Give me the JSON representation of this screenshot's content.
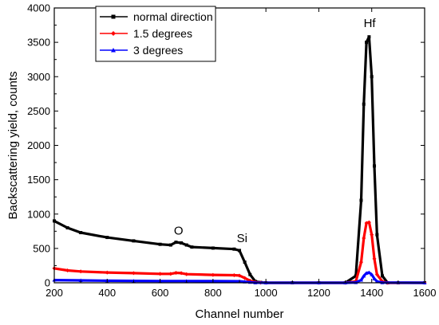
{
  "chart_data": {
    "type": "line",
    "xlabel": "Channel number",
    "ylabel": "Backscattering yield, counts",
    "xlim": [
      200,
      1600
    ],
    "ylim": [
      0,
      4000
    ],
    "xticks": [
      "200",
      "400",
      "600",
      "800",
      "1000",
      "1200",
      "1400",
      "1600"
    ],
    "yticks": [
      "0",
      "500",
      "1000",
      "1500",
      "2000",
      "2500",
      "3000",
      "3500",
      "4000"
    ],
    "legend_position": "top-left",
    "annotations": [
      {
        "text": "O",
        "x": 670,
        "y": 700
      },
      {
        "text": "Si",
        "x": 910,
        "y": 590
      },
      {
        "text": "Hf",
        "x": 1392,
        "y": 3720
      }
    ],
    "series": [
      {
        "name": "normal direction",
        "color": "#000000",
        "x": [
          200,
          250,
          300,
          400,
          500,
          600,
          640,
          660,
          680,
          700,
          720,
          800,
          880,
          900,
          920,
          940,
          960,
          980,
          1000,
          1100,
          1200,
          1300,
          1340,
          1360,
          1370,
          1380,
          1390,
          1400,
          1410,
          1420,
          1440,
          1460,
          1500,
          1600
        ],
        "y": [
          900,
          800,
          730,
          660,
          610,
          560,
          550,
          590,
          580,
          550,
          520,
          505,
          490,
          470,
          300,
          120,
          20,
          5,
          0,
          0,
          0,
          0,
          100,
          1200,
          2600,
          3500,
          3580,
          3000,
          1700,
          700,
          100,
          0,
          0,
          0
        ]
      },
      {
        "name": "1.5 degrees",
        "color": "#ff0000",
        "x": [
          200,
          250,
          300,
          400,
          500,
          600,
          640,
          660,
          680,
          700,
          800,
          880,
          900,
          920,
          940,
          960,
          980,
          1000,
          1200,
          1300,
          1340,
          1360,
          1370,
          1380,
          1390,
          1400,
          1410,
          1420,
          1440,
          1460,
          1600
        ],
        "y": [
          210,
          180,
          165,
          150,
          140,
          130,
          130,
          145,
          140,
          125,
          115,
          110,
          105,
          70,
          30,
          8,
          2,
          0,
          0,
          0,
          20,
          300,
          650,
          870,
          880,
          700,
          350,
          120,
          20,
          0,
          0
        ]
      },
      {
        "name": "3 degrees",
        "color": "#0000ff",
        "x": [
          200,
          300,
          400,
          500,
          600,
          700,
          800,
          900,
          920,
          940,
          960,
          1000,
          1200,
          1300,
          1340,
          1360,
          1370,
          1380,
          1390,
          1400,
          1410,
          1420,
          1440,
          1600
        ],
        "y": [
          40,
          35,
          30,
          28,
          26,
          25,
          24,
          22,
          15,
          8,
          2,
          0,
          0,
          0,
          5,
          40,
          100,
          140,
          150,
          120,
          60,
          20,
          3,
          0
        ]
      }
    ]
  }
}
